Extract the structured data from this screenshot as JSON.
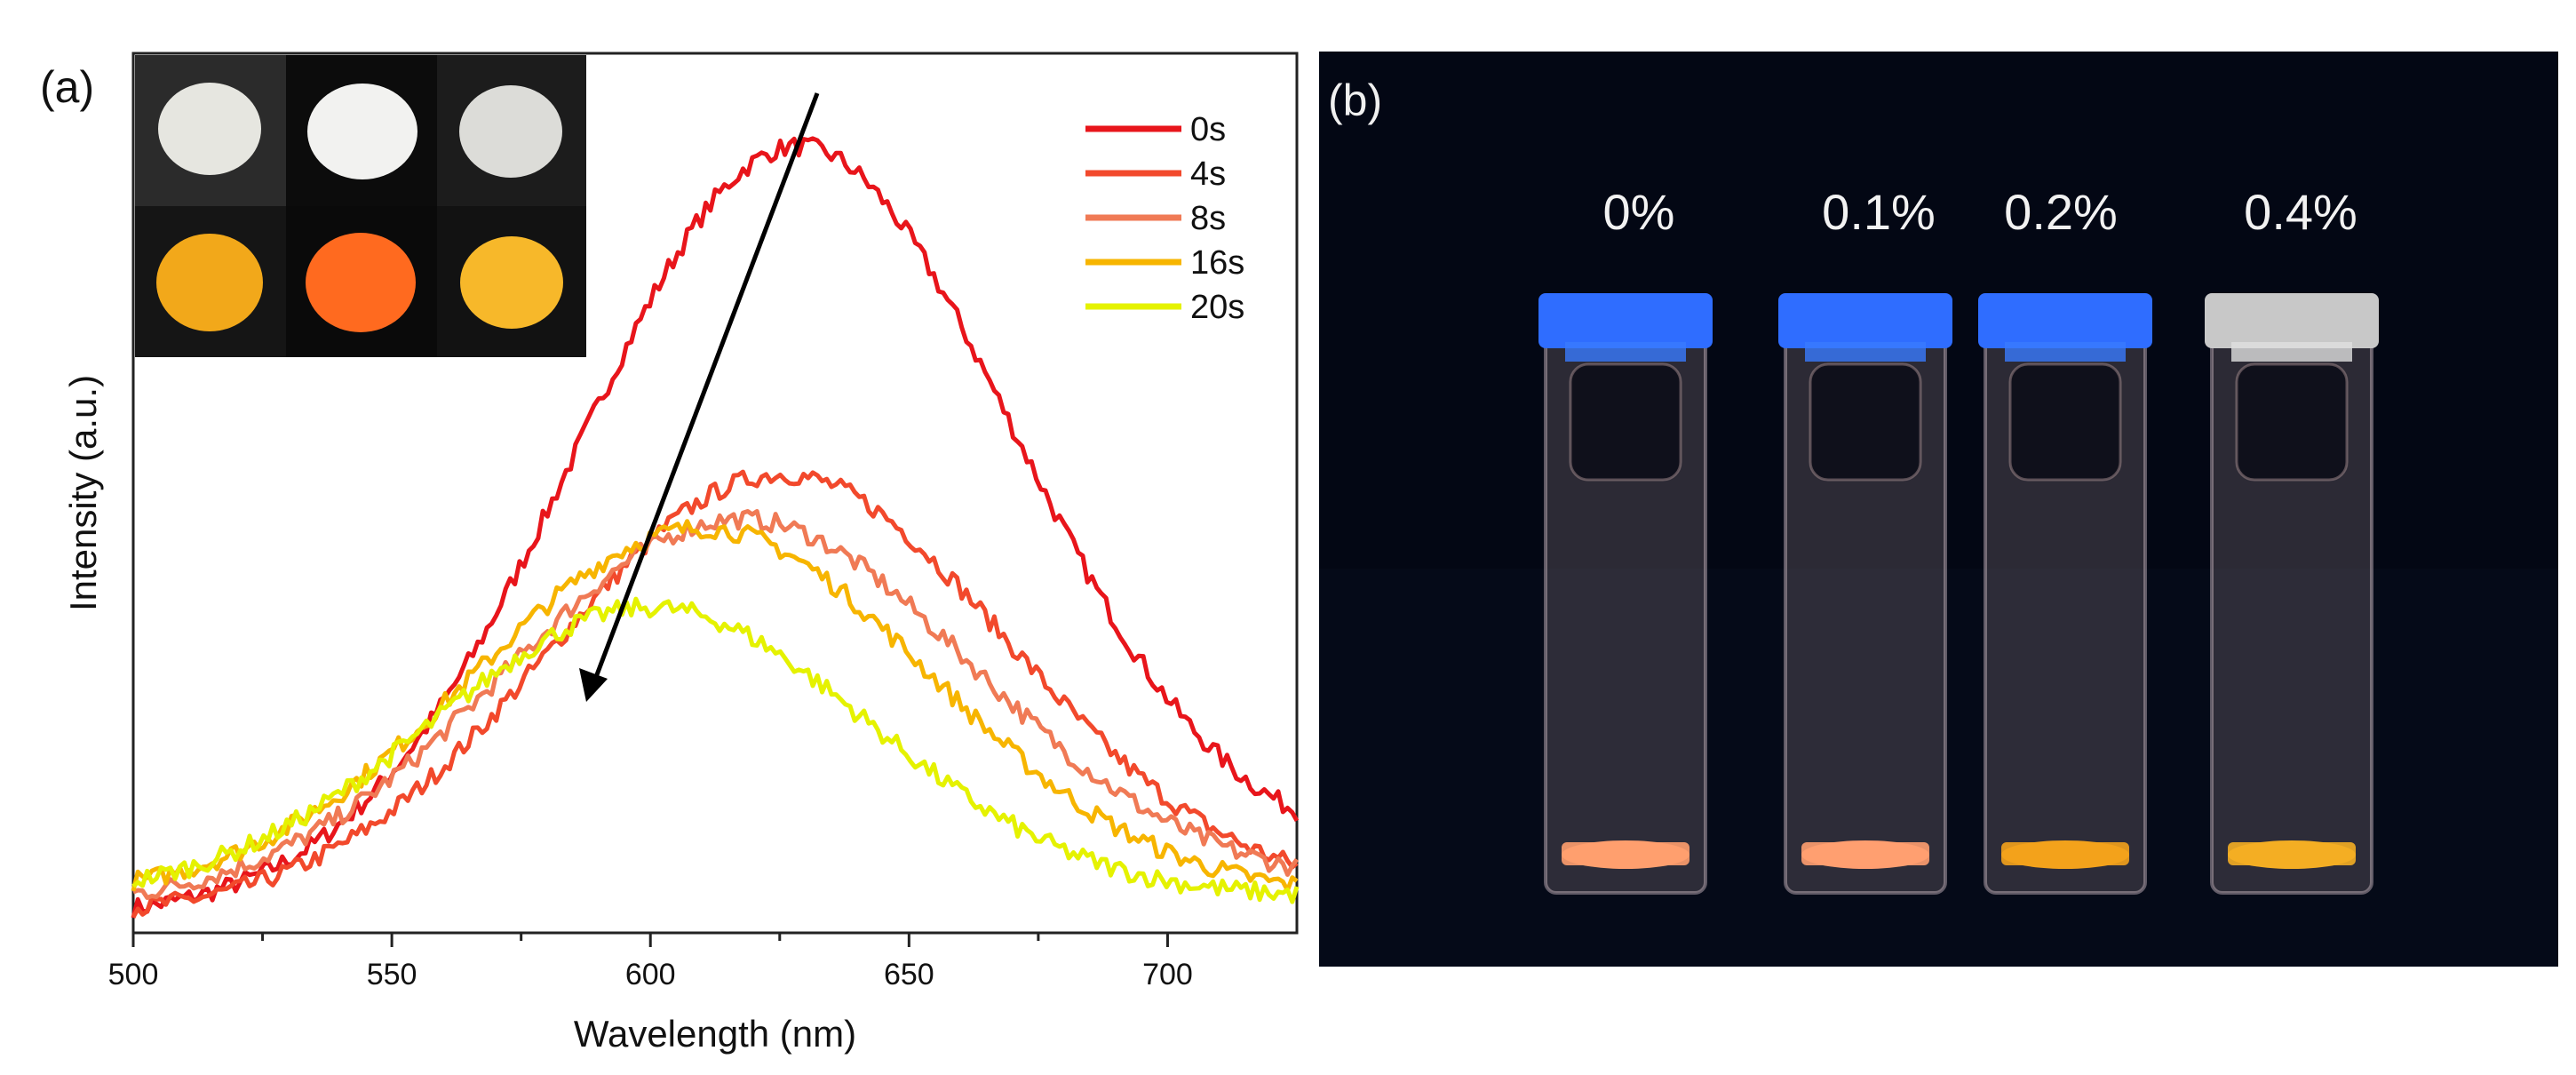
{
  "panel_a": {
    "label": "(a)",
    "inset_description": "photo inset"
  },
  "panel_b": {
    "label": "(b)",
    "concentrations": [
      "0%",
      "0.1%",
      "0.2%",
      "0.4%"
    ]
  },
  "colors": {
    "s0": "#e8151b",
    "s4": "#f2492c",
    "s8": "#f07a55",
    "s16": "#f7b500",
    "s20": "#e5f200",
    "photo_bg": "#040818"
  },
  "chart_data": {
    "type": "line",
    "title": "",
    "xlabel": "Wavelength (nm)",
    "ylabel": "Intensity (a.u.)",
    "xlim": [
      500,
      725
    ],
    "ylim": [
      0,
      1.0
    ],
    "x_ticks": [
      "500",
      "550",
      "600",
      "650",
      "700"
    ],
    "x_tick_values": [
      500,
      550,
      600,
      650,
      700
    ],
    "legend_position": "top-right",
    "annotation": "arrow indicating decreasing intensity with time",
    "series": [
      {
        "name": "0s",
        "color_key": "s0",
        "peak_nm": 628,
        "sigma": 42,
        "amplitude": 0.84,
        "base": 0.02,
        "tail": 0.06
      },
      {
        "name": "4s",
        "color_key": "s4",
        "peak_nm": 625,
        "sigma": 44,
        "amplitude": 0.49,
        "base": 0.02,
        "tail": 0.02
      },
      {
        "name": "8s",
        "color_key": "s8",
        "peak_nm": 617,
        "sigma": 45,
        "amplitude": 0.43,
        "base": 0.03,
        "tail": 0.02
      },
      {
        "name": "16s",
        "color_key": "s16",
        "peak_nm": 610,
        "sigma": 44,
        "amplitude": 0.42,
        "base": 0.04,
        "tail": 0.0
      },
      {
        "name": "20s",
        "color_key": "s20",
        "peak_nm": 600,
        "sigma": 42,
        "amplitude": 0.33,
        "base": 0.04,
        "tail": 0.0
      }
    ]
  }
}
